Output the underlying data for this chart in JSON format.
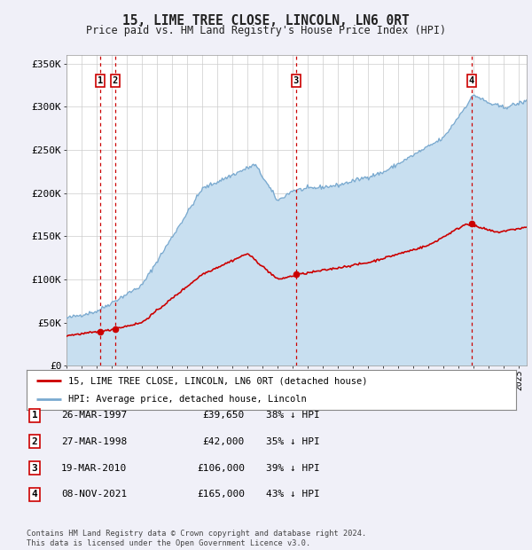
{
  "title": "15, LIME TREE CLOSE, LINCOLN, LN6 0RT",
  "subtitle": "Price paid vs. HM Land Registry's House Price Index (HPI)",
  "ylabel_ticks": [
    "£0",
    "£50K",
    "£100K",
    "£150K",
    "£200K",
    "£250K",
    "£300K",
    "£350K"
  ],
  "ytick_values": [
    0,
    50000,
    100000,
    150000,
    200000,
    250000,
    300000,
    350000
  ],
  "ylim": [
    0,
    360000
  ],
  "xlim_start": 1995.0,
  "xlim_end": 2025.5,
  "transactions": [
    {
      "num": 1,
      "date": "26-MAR-1997",
      "price": 39650,
      "pct": "38%",
      "year": 1997.23
    },
    {
      "num": 2,
      "date": "27-MAR-1998",
      "price": 42000,
      "pct": "35%",
      "year": 1998.23
    },
    {
      "num": 3,
      "date": "19-MAR-2010",
      "price": 106000,
      "pct": "39%",
      "year": 2010.21
    },
    {
      "num": 4,
      "date": "08-NOV-2021",
      "price": 165000,
      "pct": "43%",
      "year": 2021.85
    }
  ],
  "legend_line1": "15, LIME TREE CLOSE, LINCOLN, LN6 0RT (detached house)",
  "legend_line2": "HPI: Average price, detached house, Lincoln",
  "footer_line1": "Contains HM Land Registry data © Crown copyright and database right 2024.",
  "footer_line2": "This data is licensed under the Open Government Licence v3.0.",
  "price_line_color": "#cc0000",
  "hpi_line_color": "#7aaad0",
  "hpi_fill_color": "#c8dff0",
  "grid_color": "#cccccc",
  "dashed_line_color": "#cc0000",
  "box_color": "#cc0000",
  "background_color": "#f0f0f8",
  "plot_bg_color": "#ffffff"
}
